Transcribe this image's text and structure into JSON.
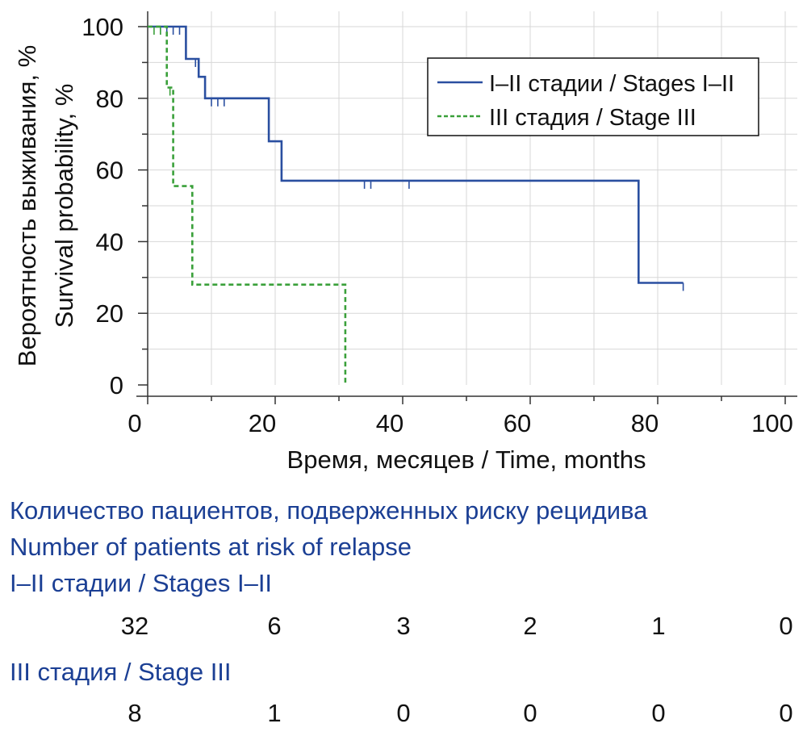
{
  "chart_data": {
    "type": "line",
    "step": true,
    "xlabel": "Время, месяцев / Time, months",
    "ylabel_lines": [
      "Вероятность выживания, %",
      "Survival probability, %"
    ],
    "xlim": [
      0,
      100
    ],
    "ylim": [
      0,
      100
    ],
    "xticks": [
      0,
      20,
      40,
      60,
      80,
      100
    ],
    "yticks": [
      0,
      20,
      40,
      60,
      80,
      100
    ],
    "grid": true,
    "legend_position": "top-right",
    "series": [
      {
        "name": "I–II стадии / Stages I–II",
        "color": "#2a4fa0",
        "style": "solid",
        "steps": [
          {
            "x": 0,
            "y": 100
          },
          {
            "x": 6,
            "y": 100
          },
          {
            "x": 6,
            "y": 91
          },
          {
            "x": 8,
            "y": 91
          },
          {
            "x": 8,
            "y": 86
          },
          {
            "x": 9,
            "y": 86
          },
          {
            "x": 9,
            "y": 80
          },
          {
            "x": 19,
            "y": 80
          },
          {
            "x": 19,
            "y": 68
          },
          {
            "x": 21,
            "y": 68
          },
          {
            "x": 21,
            "y": 57
          },
          {
            "x": 77,
            "y": 57
          },
          {
            "x": 77,
            "y": 28.5
          },
          {
            "x": 84,
            "y": 28.5
          }
        ],
        "censored": [
          {
            "x": 2,
            "y": 100
          },
          {
            "x": 3,
            "y": 100
          },
          {
            "x": 4,
            "y": 100
          },
          {
            "x": 5,
            "y": 100
          },
          {
            "x": 7.5,
            "y": 91
          },
          {
            "x": 10,
            "y": 80
          },
          {
            "x": 11,
            "y": 80
          },
          {
            "x": 12,
            "y": 80
          },
          {
            "x": 34,
            "y": 57
          },
          {
            "x": 35,
            "y": 57
          },
          {
            "x": 41,
            "y": 57
          },
          {
            "x": 84,
            "y": 28.5
          }
        ]
      },
      {
        "name": "III стадия / Stage III",
        "color": "#3aa03a",
        "style": "dashed",
        "steps": [
          {
            "x": 0,
            "y": 100
          },
          {
            "x": 3,
            "y": 100
          },
          {
            "x": 3,
            "y": 83
          },
          {
            "x": 4,
            "y": 83
          },
          {
            "x": 4,
            "y": 55.5
          },
          {
            "x": 7,
            "y": 55.5
          },
          {
            "x": 7,
            "y": 28
          },
          {
            "x": 31,
            "y": 28
          },
          {
            "x": 31,
            "y": 0
          }
        ],
        "censored": [
          {
            "x": 1,
            "y": 100
          },
          {
            "x": 2,
            "y": 100
          },
          {
            "x": 3.5,
            "y": 83
          }
        ]
      }
    ]
  },
  "risk_table": {
    "title_ru": "Количество пациентов, подверженных риску рецидива",
    "title_en": "Number of patients at risk of relapse",
    "groups": [
      {
        "label": "I–II стадии / Stages I–II",
        "counts": [
          "32",
          "6",
          "3",
          "2",
          "1",
          "0"
        ]
      },
      {
        "label": "III стадия / Stage III",
        "counts": [
          "8",
          "1",
          "0",
          "0",
          "0",
          "0"
        ]
      }
    ]
  }
}
